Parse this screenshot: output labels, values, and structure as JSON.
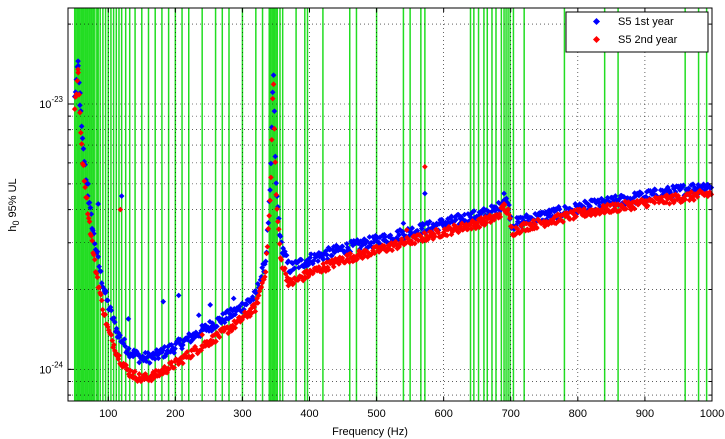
{
  "chart_data": {
    "type": "scatter",
    "xlabel": "Frequency (Hz)",
    "ylabel_main": "h",
    "ylabel_sub": "0",
    "ylabel_rest": " 95% UL",
    "x_range": [
      40,
      1000
    ],
    "y_range": [
      7.6e-25,
      2.3e-23
    ],
    "y_scale": "log",
    "grid": true,
    "legend_position": "top-right",
    "x_ticks": [
      {
        "value": 100,
        "label": "100"
      },
      {
        "value": 200,
        "label": "200"
      },
      {
        "value": 300,
        "label": "300"
      },
      {
        "value": 400,
        "label": "400"
      },
      {
        "value": 500,
        "label": "500"
      },
      {
        "value": 600,
        "label": "600"
      },
      {
        "value": 700,
        "label": "700"
      },
      {
        "value": 800,
        "label": "800"
      },
      {
        "value": 900,
        "label": "900"
      },
      {
        "value": 1000,
        "label": "1000"
      }
    ],
    "y_ticks": [
      {
        "value": 1e-24,
        "base": "10",
        "exp": "-24"
      },
      {
        "value": 1e-23,
        "base": "10",
        "exp": "-23"
      }
    ],
    "vetoed_line_color": "#22dd22",
    "vetoed_lines_hz": [
      50,
      52,
      54,
      56,
      58,
      60,
      62,
      64,
      66,
      68,
      70,
      72,
      74,
      76,
      78,
      80,
      83,
      85,
      88,
      92,
      96,
      100,
      104,
      108,
      112,
      116,
      120,
      126,
      132,
      140,
      150,
      160,
      170,
      180,
      190,
      200,
      210,
      220,
      240,
      260,
      270,
      280,
      300,
      320,
      330,
      340,
      342,
      344,
      346,
      348,
      350,
      352,
      356,
      360,
      380,
      393,
      397,
      420,
      460,
      470,
      500,
      540,
      550,
      566,
      572,
      640,
      645,
      652,
      660,
      665,
      672,
      678,
      686,
      690,
      693,
      696,
      699,
      704,
      720,
      780,
      840,
      860,
      960,
      980,
      992
    ],
    "series": [
      {
        "name": "S5 1st year",
        "color": "#0000ff",
        "anchors": [
          [
            50,
            1.05e-23
          ],
          [
            55,
            1.4e-23
          ],
          [
            58,
            1e-23
          ],
          [
            62,
            7e-24
          ],
          [
            70,
            4.5e-24
          ],
          [
            80,
            3e-24
          ],
          [
            90,
            2.2e-24
          ],
          [
            100,
            1.75e-24
          ],
          [
            115,
            1.35e-24
          ],
          [
            130,
            1.18e-24
          ],
          [
            150,
            1.1e-24
          ],
          [
            170,
            1.12e-24
          ],
          [
            200,
            1.22e-24
          ],
          [
            230,
            1.35e-24
          ],
          [
            260,
            1.5e-24
          ],
          [
            290,
            1.65e-24
          ],
          [
            320,
            1.9e-24
          ],
          [
            335,
            2.6e-24
          ],
          [
            342,
            5e-24
          ],
          [
            346,
            1.4e-23
          ],
          [
            350,
            5e-24
          ],
          [
            357,
            3e-24
          ],
          [
            370,
            2.4e-24
          ],
          [
            385,
            2.5e-24
          ],
          [
            400,
            2.6e-24
          ],
          [
            450,
            2.85e-24
          ],
          [
            500,
            3.05e-24
          ],
          [
            550,
            3.3e-24
          ],
          [
            600,
            3.55e-24
          ],
          [
            650,
            3.8e-24
          ],
          [
            680,
            4e-24
          ],
          [
            690,
            4.4e-24
          ],
          [
            696,
            4.2e-24
          ],
          [
            702,
            3.5e-24
          ],
          [
            720,
            3.65e-24
          ],
          [
            800,
            4.05e-24
          ],
          [
            900,
            4.5e-24
          ],
          [
            1000,
            4.95e-24
          ]
        ],
        "spikes": [
          [
            55,
            1.45e-23
          ],
          [
            58,
            1.1e-23
          ],
          [
            70,
            5e-24
          ],
          [
            85,
            4.2e-24
          ],
          [
            120,
            4.5e-24
          ],
          [
            130,
            1.55e-24
          ],
          [
            182,
            1.8e-24
          ],
          [
            205,
            1.9e-24
          ],
          [
            235,
            1.6e-24
          ],
          [
            252,
            1.75e-24
          ],
          [
            287,
            1.85e-24
          ],
          [
            395,
            2.45e-24
          ],
          [
            540,
            3.55e-24
          ],
          [
            572,
            4.6e-24
          ],
          [
            640,
            3.75e-24
          ],
          [
            690,
            4.6e-24
          ]
        ],
        "noise": 0.05
      },
      {
        "name": "S5 2nd year",
        "color": "#ff0000",
        "anchors": [
          [
            50,
            9.5e-24
          ],
          [
            55,
            1.3e-23
          ],
          [
            58,
            9e-24
          ],
          [
            62,
            6e-24
          ],
          [
            70,
            3.9e-24
          ],
          [
            80,
            2.5e-24
          ],
          [
            90,
            1.8e-24
          ],
          [
            100,
            1.4e-24
          ],
          [
            115,
            1.12e-24
          ],
          [
            130,
            9.8e-25
          ],
          [
            150,
            9.2e-25
          ],
          [
            170,
            9.5e-25
          ],
          [
            200,
            1.05e-24
          ],
          [
            230,
            1.18e-24
          ],
          [
            260,
            1.32e-24
          ],
          [
            290,
            1.48e-24
          ],
          [
            320,
            1.72e-24
          ],
          [
            335,
            2.4e-24
          ],
          [
            342,
            4.6e-24
          ],
          [
            346,
            1.3e-23
          ],
          [
            350,
            4.6e-24
          ],
          [
            357,
            2.6e-24
          ],
          [
            370,
            2.1e-24
          ],
          [
            385,
            2.2e-24
          ],
          [
            400,
            2.3e-24
          ],
          [
            450,
            2.6e-24
          ],
          [
            500,
            2.8e-24
          ],
          [
            550,
            3.05e-24
          ],
          [
            600,
            3.3e-24
          ],
          [
            650,
            3.55e-24
          ],
          [
            680,
            3.75e-24
          ],
          [
            690,
            4.1e-24
          ],
          [
            696,
            3.9e-24
          ],
          [
            702,
            3.3e-24
          ],
          [
            720,
            3.45e-24
          ],
          [
            800,
            3.85e-24
          ],
          [
            900,
            4.25e-24
          ],
          [
            1000,
            4.6e-24
          ]
        ],
        "spikes": [
          [
            55,
            1.35e-23
          ],
          [
            118,
            4e-24
          ],
          [
            240,
            1.35e-24
          ],
          [
            545,
            3.35e-24
          ],
          [
            572,
            5.8e-24
          ],
          [
            690,
            4.2e-24
          ]
        ],
        "noise": 0.04
      }
    ]
  }
}
